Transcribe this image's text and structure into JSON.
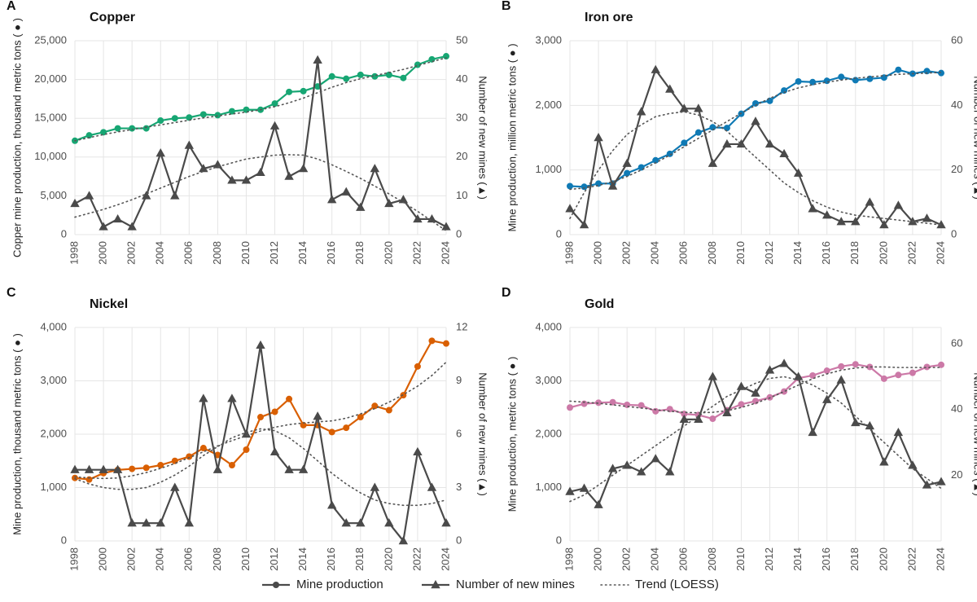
{
  "chart_data": [
    {
      "type": "line",
      "panel": "A",
      "title": "Copper",
      "ylabel": "Copper mine production, thousand metric tons ( ● )",
      "y2label": "Number of new mines (▲)",
      "x": [
        1998,
        1999,
        2000,
        2001,
        2002,
        2003,
        2004,
        2005,
        2006,
        2007,
        2008,
        2009,
        2010,
        2011,
        2012,
        2013,
        2014,
        2015,
        2016,
        2017,
        2018,
        2019,
        2020,
        2021,
        2022,
        2023,
        2024
      ],
      "xlim": [
        1998,
        2024
      ],
      "xticks": [
        1998,
        2000,
        2002,
        2004,
        2006,
        2008,
        2010,
        2012,
        2014,
        2016,
        2018,
        2020,
        2022,
        2024
      ],
      "ylim": [
        0,
        25000
      ],
      "yticks": [
        0,
        {
          "value": 5000,
          "label": "5,000"
        },
        {
          "value": 10000,
          "label": "10,000"
        },
        {
          "value": 15000,
          "label": "15,000"
        },
        {
          "value": 20000,
          "label": "20,000"
        },
        {
          "value": 25000,
          "label": "25,000"
        }
      ],
      "y2lim": [
        0,
        50
      ],
      "y2ticks": [
        0,
        10,
        20,
        30,
        40,
        50
      ],
      "grid": true,
      "series": [
        {
          "name": "Mine production",
          "color": "#17a673",
          "marker": "circle",
          "values": [
            12100,
            12800,
            13200,
            13700,
            13700,
            13700,
            14700,
            15000,
            15100,
            15500,
            15400,
            15900,
            16100,
            16100,
            16900,
            18400,
            18500,
            19100,
            20400,
            20100,
            20600,
            20400,
            20600,
            20200,
            21900,
            22600,
            23000
          ]
        },
        {
          "name": "Number of new mines",
          "color": "#4a4a4a",
          "marker": "triangle",
          "axis": "y2",
          "values": [
            8,
            10,
            2,
            4,
            2,
            10,
            21,
            10,
            23,
            17,
            18,
            14,
            14,
            16,
            28,
            15,
            17,
            45,
            9,
            11,
            7,
            17,
            8,
            9,
            4,
            4,
            2
          ]
        },
        {
          "name": "Trend (LOESS)",
          "color": "#555555",
          "dash": "dotted",
          "values": [
            12100,
            12500,
            12900,
            13250,
            13550,
            13850,
            14150,
            14450,
            14750,
            15050,
            15300,
            15550,
            15800,
            16100,
            16500,
            17000,
            17600,
            18300,
            19000,
            19600,
            20100,
            20500,
            20900,
            21300,
            21800,
            22300,
            22800
          ]
        },
        {
          "name": "Trend (LOESS)",
          "color": "#555555",
          "dash": "dotted",
          "axis": "y2",
          "values": [
            4.5,
            5.5,
            6.5,
            7.7,
            9,
            10.5,
            12,
            13.5,
            15,
            16.3,
            17.5,
            18.5,
            19.5,
            20,
            20.5,
            20.6,
            20.5,
            19.5,
            18,
            16.3,
            14.5,
            12.5,
            10.5,
            8.3,
            6,
            3.5,
            1
          ]
        }
      ]
    },
    {
      "type": "line",
      "panel": "B",
      "title": "Iron ore",
      "ylabel": "Mine production, million metric tons ( ● )",
      "y2label": "Number of new mines (▲)",
      "x": [
        1998,
        1999,
        2000,
        2001,
        2002,
        2003,
        2004,
        2005,
        2006,
        2007,
        2008,
        2009,
        2010,
        2011,
        2012,
        2013,
        2014,
        2015,
        2016,
        2017,
        2018,
        2019,
        2020,
        2021,
        2022,
        2023,
        2024
      ],
      "xlim": [
        1998,
        2024
      ],
      "xticks": [
        1998,
        2000,
        2002,
        2004,
        2006,
        2008,
        2010,
        2012,
        2014,
        2016,
        2018,
        2020,
        2022,
        2024
      ],
      "ylim": [
        0,
        3000
      ],
      "yticks": [
        0,
        {
          "value": 1000,
          "label": "1,000"
        },
        {
          "value": 2000,
          "label": "2,000"
        },
        {
          "value": 3000,
          "label": "3,000"
        }
      ],
      "y2lim": [
        0,
        60
      ],
      "y2ticks": [
        0,
        20,
        40,
        60
      ],
      "grid": true,
      "series": [
        {
          "name": "Mine production",
          "color": "#0f7ab5",
          "marker": "circle",
          "values": [
            750,
            740,
            790,
            790,
            950,
            1040,
            1150,
            1250,
            1420,
            1580,
            1660,
            1650,
            1870,
            2030,
            2070,
            2230,
            2370,
            2360,
            2380,
            2440,
            2390,
            2410,
            2430,
            2550,
            2490,
            2530,
            2500
          ]
        },
        {
          "name": "Number of new mines",
          "color": "#4a4a4a",
          "marker": "triangle",
          "axis": "y2",
          "values": [
            8,
            3,
            30,
            15,
            22,
            38,
            51,
            45,
            39,
            39,
            22,
            28,
            28,
            35,
            28,
            25,
            19,
            8,
            6,
            4,
            4,
            10,
            3,
            9,
            4,
            5,
            3
          ]
        },
        {
          "name": "Trend (LOESS)",
          "color": "#555555",
          "dash": "dotted",
          "values": [
            700,
            720,
            760,
            820,
            900,
            1000,
            1110,
            1230,
            1360,
            1490,
            1620,
            1750,
            1880,
            2000,
            2110,
            2200,
            2270,
            2320,
            2360,
            2390,
            2420,
            2440,
            2460,
            2480,
            2490,
            2500,
            2510
          ]
        },
        {
          "name": "Trend (LOESS)",
          "color": "#555555",
          "dash": "dotted",
          "axis": "y2",
          "values": [
            5,
            13,
            20,
            26,
            31,
            34,
            36.5,
            37.5,
            38,
            37,
            35,
            32,
            28,
            24,
            20,
            16,
            13,
            10.5,
            8.5,
            7,
            6,
            5.5,
            5,
            4.5,
            4,
            3.5,
            3
          ]
        }
      ]
    },
    {
      "type": "line",
      "panel": "C",
      "title": "Nickel",
      "ylabel": "Mine production, thousand metric tons ( ● )",
      "y2label": "Number of new mines (▲)",
      "x": [
        1998,
        1999,
        2000,
        2001,
        2002,
        2003,
        2004,
        2005,
        2006,
        2007,
        2008,
        2009,
        2010,
        2011,
        2012,
        2013,
        2014,
        2015,
        2016,
        2017,
        2018,
        2019,
        2020,
        2021,
        2022,
        2023,
        2024
      ],
      "xlim": [
        1998,
        2024
      ],
      "xticks": [
        1998,
        2000,
        2002,
        2004,
        2006,
        2008,
        2010,
        2012,
        2014,
        2016,
        2018,
        2020,
        2022,
        2024
      ],
      "ylim": [
        0,
        4000
      ],
      "yticks": [
        0,
        {
          "value": 1000,
          "label": "1,000"
        },
        {
          "value": 2000,
          "label": "2,000"
        },
        {
          "value": 3000,
          "label": "3,000"
        },
        {
          "value": 4000,
          "label": "4,000"
        }
      ],
      "y2lim": [
        0,
        12
      ],
      "y2ticks": [
        0,
        3,
        6,
        9,
        12
      ],
      "grid": true,
      "series": [
        {
          "name": "Mine production",
          "color": "#d95f02",
          "marker": "circle",
          "values": [
            1180,
            1150,
            1270,
            1330,
            1350,
            1370,
            1420,
            1500,
            1580,
            1740,
            1610,
            1420,
            1710,
            2320,
            2420,
            2660,
            2170,
            2170,
            2040,
            2120,
            2320,
            2530,
            2450,
            2730,
            3270,
            3750,
            3700
          ]
        },
        {
          "name": "Number of new mines",
          "color": "#4a4a4a",
          "marker": "triangle",
          "axis": "y2",
          "values": [
            4,
            4,
            4,
            4,
            1,
            1,
            1,
            3,
            1,
            8,
            4,
            8,
            6,
            11,
            5,
            4,
            4,
            7,
            2,
            1,
            1,
            3,
            1,
            0,
            5,
            3,
            1
          ]
        },
        {
          "name": "Trend (LOESS)",
          "color": "#555555",
          "dash": "dotted",
          "values": [
            1200,
            1180,
            1170,
            1180,
            1220,
            1280,
            1360,
            1450,
            1560,
            1670,
            1780,
            1880,
            1970,
            2060,
            2130,
            2180,
            2210,
            2230,
            2250,
            2300,
            2380,
            2480,
            2600,
            2740,
            2900,
            3100,
            3350
          ]
        },
        {
          "name": "Trend (LOESS)",
          "color": "#555555",
          "dash": "dotted",
          "axis": "y2",
          "values": [
            3.5,
            3.2,
            3,
            2.9,
            2.9,
            3,
            3.3,
            3.7,
            4.2,
            4.8,
            5.3,
            5.8,
            6.1,
            6.3,
            6.2,
            5.8,
            5.2,
            4.5,
            3.8,
            3.2,
            2.7,
            2.3,
            2.1,
            2,
            2,
            2.1,
            2.3
          ]
        }
      ]
    },
    {
      "type": "line",
      "panel": "D",
      "title": "Gold",
      "ylabel": "Mine production, metric tons ( ● )",
      "y2label": "Number of new mines (▲)",
      "x": [
        1998,
        1999,
        2000,
        2001,
        2002,
        2003,
        2004,
        2005,
        2006,
        2007,
        2008,
        2009,
        2010,
        2011,
        2012,
        2013,
        2014,
        2015,
        2016,
        2017,
        2018,
        2019,
        2020,
        2021,
        2022,
        2023,
        2024
      ],
      "xlim": [
        1998,
        2024
      ],
      "xticks": [
        1998,
        2000,
        2002,
        2004,
        2006,
        2008,
        2010,
        2012,
        2014,
        2016,
        2018,
        2020,
        2022,
        2024
      ],
      "ylim": [
        0,
        4000
      ],
      "yticks": [
        0,
        {
          "value": 1000,
          "label": "1,000"
        },
        {
          "value": 2000,
          "label": "2,000"
        },
        {
          "value": 3000,
          "label": "3,000"
        },
        {
          "value": 4000,
          "label": "4,000"
        }
      ],
      "y2lim": [
        0,
        65
      ],
      "y2ticks": [
        20,
        40,
        60
      ],
      "grid": true,
      "series": [
        {
          "name": "Mine production",
          "color": "#cc79a7",
          "marker": "circle",
          "values": [
            2500,
            2570,
            2590,
            2600,
            2550,
            2540,
            2430,
            2470,
            2380,
            2360,
            2290,
            2450,
            2560,
            2620,
            2690,
            2800,
            3050,
            3100,
            3190,
            3270,
            3310,
            3260,
            3040,
            3110,
            3150,
            3260,
            3300
          ]
        },
        {
          "name": "Number of new mines",
          "color": "#4a4a4a",
          "marker": "triangle",
          "axis": "y2",
          "values": [
            15,
            16,
            11,
            22,
            23,
            21,
            25,
            21,
            37,
            37,
            50,
            39,
            47,
            45,
            52,
            54,
            50,
            33,
            43,
            49,
            36,
            35,
            24,
            33,
            23,
            17,
            18
          ]
        },
        {
          "name": "Trend (LOESS)",
          "color": "#555555",
          "dash": "dotted",
          "values": [
            2620,
            2600,
            2580,
            2550,
            2520,
            2490,
            2460,
            2430,
            2410,
            2400,
            2410,
            2440,
            2500,
            2580,
            2680,
            2800,
            2920,
            3040,
            3130,
            3200,
            3240,
            3260,
            3260,
            3250,
            3250,
            3250,
            3250
          ]
        },
        {
          "name": "Trend (LOESS)",
          "color": "#555555",
          "dash": "dotted",
          "axis": "y2",
          "values": [
            12,
            14,
            17,
            20,
            23,
            26,
            29,
            32,
            35,
            38,
            41,
            44,
            46,
            48,
            49.5,
            50,
            49,
            47.5,
            45,
            42,
            38,
            34,
            30,
            26,
            22,
            19,
            16
          ]
        }
      ]
    }
  ]
}
